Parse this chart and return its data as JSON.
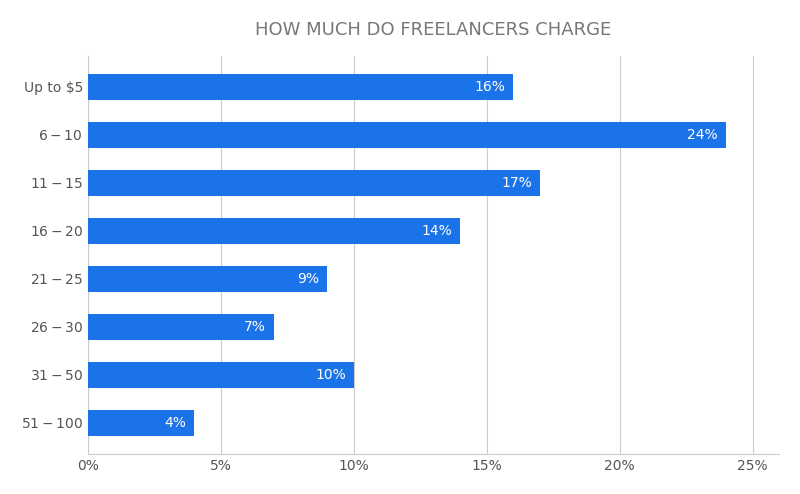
{
  "title": "HOW MUCH DO FREELANCERS CHARGE",
  "categories": [
    "Up to $5",
    "$6-$10",
    "$11-$15",
    "$16-$20",
    "$21-$25",
    "$26-$30",
    "$31-$50",
    "$51-$100"
  ],
  "values": [
    16,
    24,
    17,
    14,
    9,
    7,
    10,
    4
  ],
  "bar_color": "#1a73e8",
  "label_color": "#ffffff",
  "background_color": "#ffffff",
  "grid_color": "#cccccc",
  "title_color": "#777777",
  "ylabel_color": "#555555",
  "xlabel_color": "#555555",
  "title_fontsize": 13,
  "label_fontsize": 10,
  "tick_fontsize": 10,
  "bar_height": 0.55,
  "xlim": [
    0,
    26
  ],
  "xticks": [
    0,
    5,
    10,
    15,
    20,
    25
  ],
  "figsize": [
    8.0,
    4.94
  ],
  "dpi": 100
}
